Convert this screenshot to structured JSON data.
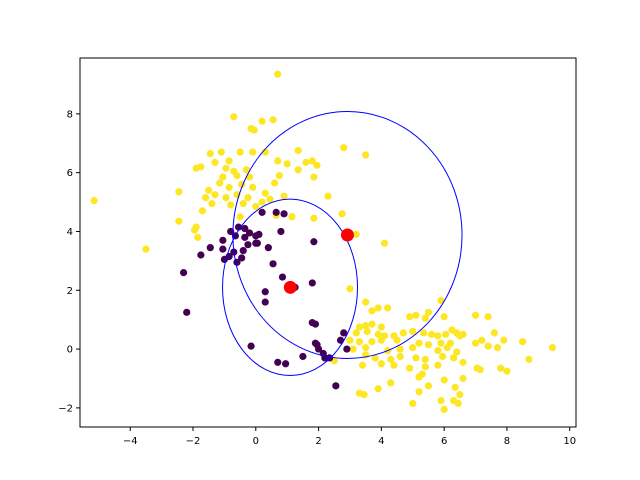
{
  "chart_data": {
    "type": "scatter",
    "title": "",
    "xlabel": "",
    "ylabel": "",
    "xlim": [
      -5.6,
      10.2
    ],
    "ylim": [
      -2.65,
      9.9
    ],
    "x_ticks": [
      -4,
      -2,
      0,
      2,
      4,
      6,
      8,
      10
    ],
    "y_ticks": [
      -2,
      0,
      2,
      4,
      6,
      8
    ],
    "grid": false,
    "legend": "none",
    "colors": {
      "cluster_a": "#440154",
      "cluster_b": "#fde725",
      "centers": "#ff0000",
      "ellipses": "#0000ff"
    },
    "series": [
      {
        "color": "#fde725",
        "points": [
          [
            0.7,
            9.35
          ],
          [
            0.2,
            7.75
          ],
          [
            0.55,
            7.8
          ],
          [
            -0.7,
            7.9
          ],
          [
            -0.15,
            7.5
          ],
          [
            -0.05,
            7.45
          ],
          [
            -1.45,
            6.65
          ],
          [
            -1.1,
            6.7
          ],
          [
            -0.5,
            6.7
          ],
          [
            -0.1,
            6.7
          ],
          [
            0.3,
            6.7
          ],
          [
            1.35,
            6.75
          ],
          [
            2.8,
            6.85
          ],
          [
            3.5,
            6.6
          ],
          [
            -1.3,
            6.35
          ],
          [
            -0.85,
            6.4
          ],
          [
            0.7,
            6.4
          ],
          [
            1.6,
            6.35
          ],
          [
            1.8,
            6.4
          ],
          [
            1.95,
            6.25
          ],
          [
            -1.75,
            6.2
          ],
          [
            -1.9,
            6.15
          ],
          [
            -0.95,
            6.15
          ],
          [
            -0.7,
            6.05
          ],
          [
            -0.3,
            6.1
          ],
          [
            1.0,
            6.3
          ],
          [
            1.35,
            6.1
          ],
          [
            1.85,
            5.85
          ],
          [
            0.75,
            5.9
          ],
          [
            -1.05,
            5.85
          ],
          [
            -0.6,
            5.9
          ],
          [
            -0.2,
            5.85
          ],
          [
            0.6,
            5.65
          ],
          [
            -1.5,
            5.4
          ],
          [
            -1.15,
            5.65
          ],
          [
            -0.85,
            5.5
          ],
          [
            -0.45,
            5.6
          ],
          [
            -0.1,
            5.5
          ],
          [
            0.3,
            5.3
          ],
          [
            -2.45,
            5.35
          ],
          [
            -1.6,
            5.15
          ],
          [
            -1.3,
            5.25
          ],
          [
            -0.95,
            5.15
          ],
          [
            -0.6,
            5.25
          ],
          [
            -0.25,
            5.15
          ],
          [
            0.2,
            5.0
          ],
          [
            0.45,
            5.1
          ],
          [
            0.9,
            5.2
          ],
          [
            2.3,
            5.2
          ],
          [
            -5.15,
            5.05
          ],
          [
            -1.4,
            4.95
          ],
          [
            -0.8,
            4.9
          ],
          [
            -0.4,
            4.95
          ],
          [
            0.0,
            4.85
          ],
          [
            -1.7,
            4.7
          ],
          [
            -0.5,
            4.5
          ],
          [
            0.65,
            4.55
          ],
          [
            1.15,
            4.5
          ],
          [
            1.85,
            4.45
          ],
          [
            2.75,
            4.6
          ],
          [
            -2.45,
            4.35
          ],
          [
            -1.9,
            4.15
          ],
          [
            -1.95,
            4.05
          ],
          [
            -1.85,
            3.8
          ],
          [
            -3.5,
            3.4
          ],
          [
            4.1,
            3.6
          ],
          [
            3.2,
            3.9
          ],
          [
            3.0,
            2.05
          ],
          [
            3.5,
            1.6
          ],
          [
            3.7,
            1.3
          ],
          [
            3.9,
            1.4
          ],
          [
            4.2,
            1.4
          ],
          [
            5.5,
            1.25
          ],
          [
            4.9,
            1.1
          ],
          [
            5.1,
            1.15
          ],
          [
            5.4,
            1.05
          ],
          [
            5.9,
            1.65
          ],
          [
            6.0,
            1.1
          ],
          [
            7.0,
            1.15
          ],
          [
            7.4,
            1.1
          ],
          [
            6.25,
            0.65
          ],
          [
            6.4,
            0.55
          ],
          [
            7.6,
            0.55
          ],
          [
            3.3,
            0.75
          ],
          [
            3.5,
            0.8
          ],
          [
            3.7,
            0.85
          ],
          [
            4.0,
            0.75
          ],
          [
            3.2,
            0.55
          ],
          [
            3.55,
            0.6
          ],
          [
            3.9,
            0.5
          ],
          [
            4.1,
            0.45
          ],
          [
            4.4,
            0.45
          ],
          [
            4.7,
            0.55
          ],
          [
            5.0,
            0.6
          ],
          [
            5.35,
            0.55
          ],
          [
            5.6,
            0.5
          ],
          [
            5.8,
            0.45
          ],
          [
            6.05,
            0.5
          ],
          [
            6.5,
            0.45
          ],
          [
            6.6,
            0.5
          ],
          [
            7.2,
            0.3
          ],
          [
            7.9,
            0.3
          ],
          [
            8.5,
            0.25
          ],
          [
            3.0,
            0.3
          ],
          [
            3.3,
            0.25
          ],
          [
            3.7,
            0.25
          ],
          [
            4.0,
            0.3
          ],
          [
            4.5,
            0.3
          ],
          [
            5.2,
            0.2
          ],
          [
            5.5,
            0.15
          ],
          [
            5.9,
            0.2
          ],
          [
            6.2,
            0.2
          ],
          [
            7.0,
            0.2
          ],
          [
            7.4,
            0.1
          ],
          [
            7.7,
            0.05
          ],
          [
            3.1,
            0.0
          ],
          [
            3.5,
            0.05
          ],
          [
            4.2,
            -0.05
          ],
          [
            4.6,
            0.0
          ],
          [
            5.0,
            0.05
          ],
          [
            5.8,
            -0.05
          ],
          [
            6.1,
            0.05
          ],
          [
            6.4,
            -0.1
          ],
          [
            8.7,
            -0.35
          ],
          [
            9.45,
            0.05
          ],
          [
            3.5,
            -0.2
          ],
          [
            3.8,
            -0.3
          ],
          [
            4.3,
            -0.35
          ],
          [
            4.6,
            -0.25
          ],
          [
            5.1,
            -0.3
          ],
          [
            5.4,
            -0.35
          ],
          [
            5.95,
            -0.25
          ],
          [
            6.3,
            -0.3
          ],
          [
            2.5,
            -0.4
          ],
          [
            3.4,
            -0.55
          ],
          [
            4.0,
            -0.5
          ],
          [
            4.4,
            -0.55
          ],
          [
            4.9,
            -0.65
          ],
          [
            5.4,
            -0.6
          ],
          [
            5.8,
            -0.55
          ],
          [
            6.6,
            -0.45
          ],
          [
            7.05,
            -0.65
          ],
          [
            7.15,
            -0.7
          ],
          [
            7.8,
            -0.65
          ],
          [
            8.0,
            -0.75
          ],
          [
            5.3,
            -0.85
          ],
          [
            5.2,
            -0.95
          ],
          [
            6.6,
            -1.0
          ],
          [
            6.0,
            -1.05
          ],
          [
            4.3,
            -1.15
          ],
          [
            5.5,
            -1.25
          ],
          [
            6.35,
            -1.3
          ],
          [
            6.5,
            -1.55
          ],
          [
            3.3,
            -1.5
          ],
          [
            3.45,
            -1.55
          ],
          [
            3.9,
            -1.35
          ],
          [
            5.2,
            -1.45
          ],
          [
            5.0,
            -1.85
          ],
          [
            5.9,
            -1.75
          ],
          [
            6.3,
            -1.75
          ],
          [
            6.45,
            -1.85
          ],
          [
            6.0,
            -2.05
          ]
        ]
      },
      {
        "color": "#440154",
        "points": [
          [
            0.65,
            4.65
          ],
          [
            0.9,
            4.6
          ],
          [
            0.2,
            4.65
          ],
          [
            0.8,
            4.0
          ],
          [
            -0.55,
            4.15
          ],
          [
            -0.35,
            4.1
          ],
          [
            -0.2,
            3.95
          ],
          [
            -0.8,
            4.0
          ],
          [
            -0.65,
            3.85
          ],
          [
            -0.35,
            3.8
          ],
          [
            0.0,
            3.85
          ],
          [
            0.1,
            3.9
          ],
          [
            -1.05,
            3.7
          ],
          [
            -0.25,
            3.55
          ],
          [
            0.0,
            3.6
          ],
          [
            0.05,
            3.6
          ],
          [
            -1.45,
            3.45
          ],
          [
            -1.05,
            3.4
          ],
          [
            -0.7,
            3.3
          ],
          [
            -0.4,
            3.35
          ],
          [
            0.4,
            3.45
          ],
          [
            1.85,
            3.65
          ],
          [
            -1.75,
            3.2
          ],
          [
            -0.85,
            3.15
          ],
          [
            -1.0,
            3.05
          ],
          [
            -0.45,
            3.1
          ],
          [
            -0.6,
            2.95
          ],
          [
            0.55,
            2.9
          ],
          [
            0.85,
            2.45
          ],
          [
            -2.3,
            2.6
          ],
          [
            1.25,
            2.1
          ],
          [
            1.8,
            2.25
          ],
          [
            0.3,
            1.95
          ],
          [
            0.3,
            1.6
          ],
          [
            1.8,
            0.9
          ],
          [
            1.9,
            0.85
          ],
          [
            2.8,
            0.55
          ],
          [
            2.7,
            0.3
          ],
          [
            -2.2,
            1.25
          ],
          [
            -0.15,
            0.1
          ],
          [
            1.9,
            0.2
          ],
          [
            1.95,
            0.15
          ],
          [
            2.0,
            0.0
          ],
          [
            2.15,
            -0.15
          ],
          [
            2.2,
            -0.3
          ],
          [
            2.35,
            -0.3
          ],
          [
            2.9,
            0.0
          ],
          [
            1.5,
            -0.25
          ],
          [
            0.7,
            -0.45
          ],
          [
            0.95,
            -0.5
          ],
          [
            2.55,
            -1.25
          ]
        ]
      }
    ],
    "centers": [
      [
        1.1,
        2.1
      ],
      [
        2.92,
        3.88
      ]
    ],
    "ellipses": [
      {
        "cx": 1.09,
        "cy": 2.1,
        "rx": 2.15,
        "ry": 3.0
      },
      {
        "cx": 2.92,
        "cy": 3.88,
        "rx": 3.65,
        "ry": 4.2
      }
    ]
  }
}
